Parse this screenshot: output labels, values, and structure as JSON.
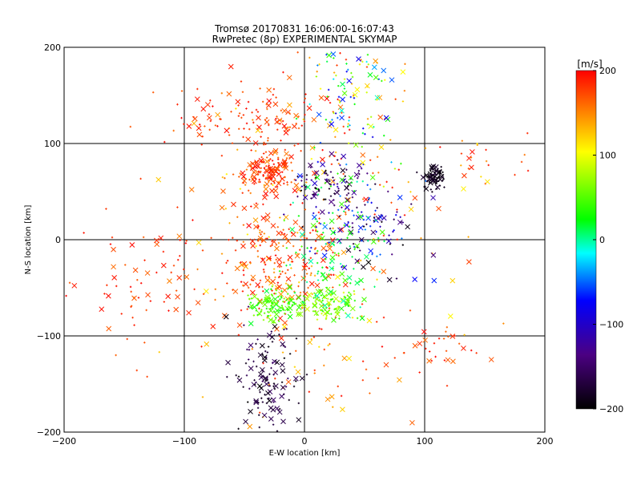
{
  "chart_data": {
    "type": "scatter",
    "title": "Tromsø 20170831 16:06:00-16:07:43",
    "subtitle": "RwPretec (8p) EXPERIMENTAL SKYMAP",
    "xlabel": "E-W location [km]",
    "ylabel": "N-S location [km]",
    "xlim": [
      -200,
      200
    ],
    "ylim": [
      -200,
      200
    ],
    "xticks": [
      -200,
      -100,
      0,
      100,
      200
    ],
    "yticks": [
      -200,
      -100,
      0,
      100,
      200
    ],
    "grid": true,
    "colorbar": {
      "label": "[m/s]",
      "range": [
        -200,
        200
      ],
      "ticks": [
        200,
        100,
        0,
        -100,
        -200
      ],
      "colors": [
        "#000000",
        "#4b0082",
        "#0000ff",
        "#00ffff",
        "#00ff00",
        "#ffff00",
        "#ff0000"
      ]
    },
    "markers": [
      "cross",
      "x"
    ],
    "clusters": [
      {
        "x": 0,
        "y": 0,
        "sx": 55,
        "sy": 100,
        "n": 320,
        "vmin": 100,
        "vmax": 200
      },
      {
        "x": -30,
        "y": 70,
        "sx": 12,
        "sy": 10,
        "n": 140,
        "vmin": 140,
        "vmax": 200
      },
      {
        "x": -40,
        "y": 125,
        "sx": 35,
        "sy": 18,
        "n": 110,
        "vmin": 150,
        "vmax": 200
      },
      {
        "x": -20,
        "y": -20,
        "sx": 25,
        "sy": 30,
        "n": 160,
        "vmin": 130,
        "vmax": 200
      },
      {
        "x": -25,
        "y": -68,
        "sx": 12,
        "sy": 8,
        "n": 110,
        "vmin": 0,
        "vmax": 60
      },
      {
        "x": 20,
        "y": -68,
        "sx": 12,
        "sy": 8,
        "n": 100,
        "vmin": 20,
        "vmax": 90
      },
      {
        "x": 20,
        "y": 60,
        "sx": 15,
        "sy": 10,
        "n": 80,
        "vmin": -200,
        "vmax": -120
      },
      {
        "x": 45,
        "y": 20,
        "sx": 25,
        "sy": 25,
        "n": 120,
        "vmin": -200,
        "vmax": -60
      },
      {
        "x": 40,
        "y": 150,
        "sx": 20,
        "sy": 40,
        "n": 110,
        "vmin": -120,
        "vmax": 140
      },
      {
        "x": 107,
        "y": 65,
        "sx": 5,
        "sy": 6,
        "n": 80,
        "vmin": -200,
        "vmax": -180
      },
      {
        "x": -30,
        "y": -150,
        "sx": 14,
        "sy": 30,
        "n": 130,
        "vmin": -200,
        "vmax": -160
      },
      {
        "x": 25,
        "y": -15,
        "sx": 20,
        "sy": 40,
        "n": 120,
        "vmin": -20,
        "vmax": 40
      },
      {
        "x": -130,
        "y": -40,
        "sx": 35,
        "sy": 40,
        "n": 70,
        "vmin": 150,
        "vmax": 200
      },
      {
        "x": 110,
        "y": -110,
        "sx": 20,
        "sy": 15,
        "n": 30,
        "vmin": 150,
        "vmax": 200
      },
      {
        "x": 140,
        "y": 80,
        "sx": 20,
        "sy": 15,
        "n": 25,
        "vmin": 100,
        "vmax": 200
      }
    ]
  }
}
